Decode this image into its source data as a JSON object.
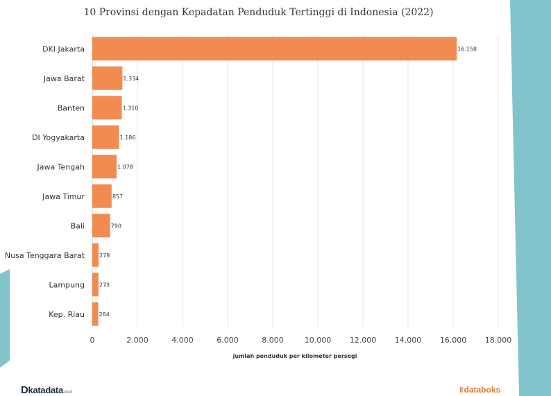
{
  "chart_data": {
    "type": "bar",
    "orientation": "horizontal",
    "title": "10 Provinsi dengan Kepadatan Penduduk Tertinggi di Indonesia (2022)",
    "xlabel": "jumlah penduduk per kilometer persegi",
    "ylabel": "",
    "xlim": [
      0,
      18000
    ],
    "xticks": [
      0,
      2000,
      4000,
      6000,
      8000,
      10000,
      12000,
      14000,
      16000,
      18000
    ],
    "xtick_labels": [
      "0",
      "2.000",
      "4.000",
      "6.000",
      "8.000",
      "10.000",
      "12.000",
      "14.000",
      "16.000",
      "18.000"
    ],
    "grid": true,
    "categories": [
      "DKI Jakarta",
      "Jawa Barat",
      "Banten",
      "DI Yogyakarta",
      "Jawa Tengah",
      "Jawa Timur",
      "Bali",
      "Nusa Tenggara Barat",
      "Lampung",
      "Kep. Riau"
    ],
    "values": [
      16158,
      1334,
      1310,
      1186,
      1078,
      857,
      790,
      278,
      273,
      264
    ],
    "value_labels": [
      "16.158",
      "1.334",
      "1.310",
      "1.186",
      "1.078",
      "857",
      "790",
      "278",
      "273",
      "264"
    ],
    "bar_color": "#f28b50"
  },
  "branding": {
    "left_d": "D",
    "left_name": "katadata",
    "left_suffix": ".co.id",
    "right_mark": "‖",
    "right_name": "databoks"
  },
  "colors": {
    "background": "#ffffff",
    "accent_bg": "#82c4cc",
    "grid": "#e6e6e6"
  }
}
